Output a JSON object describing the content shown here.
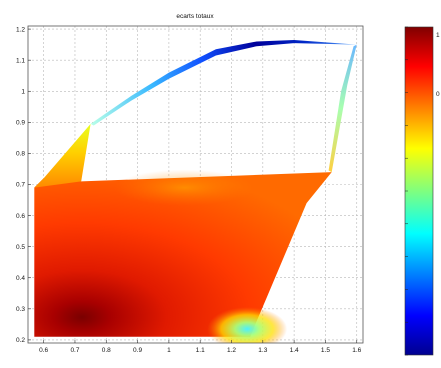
{
  "chart_data": {
    "type": "heatmap",
    "title": "ecarts totaux",
    "xlabel": "",
    "ylabel": "",
    "xlim": [
      0.55,
      1.62
    ],
    "ylim": [
      0.19,
      1.21
    ],
    "xticks": [
      0.6,
      0.7,
      0.8,
      0.9,
      1.0,
      1.1,
      1.2,
      1.3,
      1.4,
      1.5,
      1.6
    ],
    "xtick_labels": [
      "0.6",
      "0.7",
      "0.8",
      "0.9",
      "1",
      "1.1",
      "1.2",
      "1.3",
      "1.4",
      "1.5",
      "1.6"
    ],
    "yticks": [
      0.2,
      0.3,
      0.4,
      0.5,
      0.6,
      0.7,
      0.8,
      0.9,
      1.0,
      1.1,
      1.2
    ],
    "ytick_labels": [
      "0.2",
      "0.3",
      "0.4",
      "0.5",
      "0.6",
      "0.7",
      "0.8",
      "0.9",
      "1",
      "1.1",
      "1.2"
    ],
    "grid": true,
    "colormap": "jet",
    "colorbar": {
      "position": "right",
      "visible_tick_labels": [
        "1",
        "0"
      ]
    },
    "surface": {
      "boundary": [
        [
          0.57,
          0.21
        ],
        [
          0.57,
          0.69
        ],
        [
          0.6,
          0.72
        ],
        [
          0.75,
          0.895
        ],
        [
          1.0,
          1.06
        ],
        [
          1.15,
          1.135
        ],
        [
          1.4,
          1.165
        ],
        [
          1.6,
          1.15
        ],
        [
          1.57,
          1.02
        ],
        [
          1.52,
          0.74
        ],
        [
          1.44,
          0.64
        ],
        [
          1.31,
          0.33
        ],
        [
          1.28,
          0.26
        ],
        [
          1.26,
          0.21
        ]
      ],
      "hole": [
        [
          0.75,
          0.895
        ],
        [
          1.0,
          1.06
        ],
        [
          1.15,
          1.135
        ],
        [
          1.4,
          1.165
        ],
        [
          1.6,
          1.15
        ],
        [
          1.57,
          1.02
        ],
        [
          1.52,
          0.74
        ],
        [
          0.72,
          0.71
        ]
      ],
      "color_levels_description": [
        {
          "region": "lower-left corner near x=0.67, y=0.30",
          "level": "maximum (dark red)"
        },
        {
          "region": "main body",
          "level": "high (red/orange)"
        },
        {
          "region": "bottom right near x=1.25, y=0.23",
          "level": "low (cyan)"
        },
        {
          "region": "upper arc x=1.1-1.45, y=1.13-1.17",
          "level": "minimum (dark blue)"
        },
        {
          "region": "upper left x=0.6-0.72, y=0.72-0.9",
          "level": "medium (yellow)"
        }
      ]
    }
  }
}
